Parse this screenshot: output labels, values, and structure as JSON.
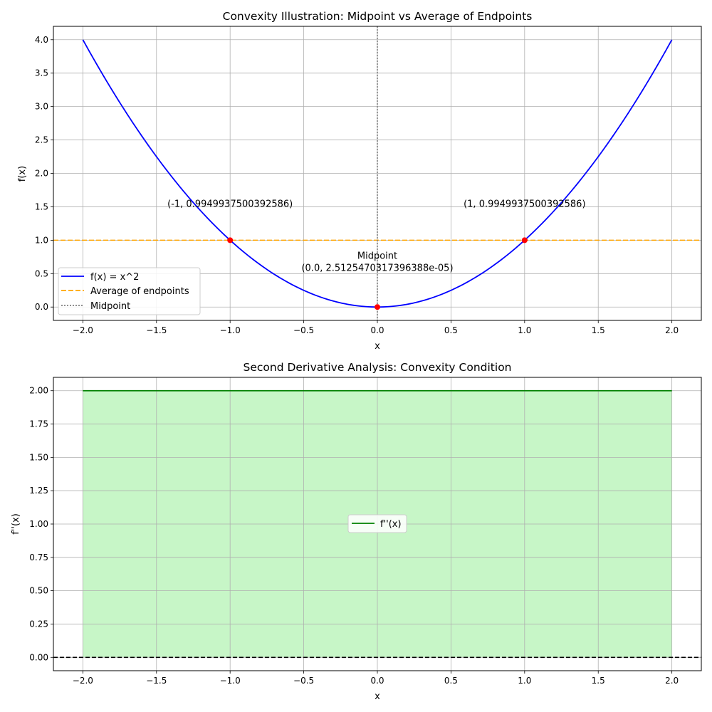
{
  "chart_data": [
    {
      "type": "line",
      "title": "Convexity Illustration: Midpoint vs Average of Endpoints",
      "xlabel": "x",
      "ylabel": "f(x)",
      "xlim": [
        -2.2,
        2.2
      ],
      "ylim": [
        -0.2,
        4.2
      ],
      "xticks": [
        -2.0,
        -1.5,
        -1.0,
        -0.5,
        0.0,
        0.5,
        1.0,
        1.5,
        2.0
      ],
      "xtick_labels": [
        "−2.0",
        "−1.5",
        "−1.0",
        "−0.5",
        "0.0",
        "0.5",
        "1.0",
        "1.5",
        "2.0"
      ],
      "yticks": [
        0.0,
        0.5,
        1.0,
        1.5,
        2.0,
        2.5,
        3.0,
        3.5,
        4.0
      ],
      "ytick_labels": [
        "0.0",
        "0.5",
        "1.0",
        "1.5",
        "2.0",
        "2.5",
        "3.0",
        "3.5",
        "4.0"
      ],
      "grid": true,
      "legend_position": "lower-left",
      "curve": {
        "name": "f(x) = x^2",
        "x_range": [
          -2,
          2
        ],
        "color": "#0000ff"
      },
      "average_line": {
        "name": "Average of endpoints",
        "y": 1.0,
        "color": "#ffa500"
      },
      "midpoint_line": {
        "name": "Midpoint",
        "x": 0.0,
        "color": "#808080"
      },
      "points": [
        {
          "x": -1,
          "y": 1.0,
          "color": "#ff0000"
        },
        {
          "x": 1,
          "y": 1.0,
          "color": "#ff0000"
        },
        {
          "x": 0,
          "y": 0.0,
          "color": "#ff0000"
        }
      ],
      "annotations": [
        {
          "text": "(-1, 0.9949937500392586)",
          "x": -1.0,
          "y": 1.5
        },
        {
          "text": "(1, 0.9949937500392586)",
          "x": 1.0,
          "y": 1.5
        },
        {
          "text": "Midpoint",
          "x": 0.0,
          "y": 0.72
        },
        {
          "text": "(0.0, 2.5125470317396388e-05)",
          "x": 0.0,
          "y": 0.54
        }
      ]
    },
    {
      "type": "area",
      "title": "Second Derivative Analysis: Convexity Condition",
      "xlabel": "x",
      "ylabel": "f''(x)",
      "xlim": [
        -2.2,
        2.2
      ],
      "ylim": [
        -0.1,
        2.1
      ],
      "xticks": [
        -2.0,
        -1.5,
        -1.0,
        -0.5,
        0.0,
        0.5,
        1.0,
        1.5,
        2.0
      ],
      "xtick_labels": [
        "−2.0",
        "−1.5",
        "−1.0",
        "−0.5",
        "0.0",
        "0.5",
        "1.0",
        "1.5",
        "2.0"
      ],
      "yticks": [
        0.0,
        0.25,
        0.5,
        0.75,
        1.0,
        1.25,
        1.5,
        1.75,
        2.0
      ],
      "ytick_labels": [
        "0.00",
        "0.25",
        "0.50",
        "0.75",
        "1.00",
        "1.25",
        "1.50",
        "1.75",
        "2.00"
      ],
      "grid": true,
      "legend_position": "center",
      "series": [
        {
          "name": "f''(x)",
          "x": [
            -2,
            2
          ],
          "y": [
            2.0,
            2.0
          ],
          "color": "#008000"
        }
      ],
      "fill": {
        "from": 0,
        "to": 2.0,
        "x_range": [
          -2,
          2
        ],
        "color": "#90ee90"
      },
      "zero_line": {
        "y": 0,
        "color": "#000000"
      }
    }
  ]
}
